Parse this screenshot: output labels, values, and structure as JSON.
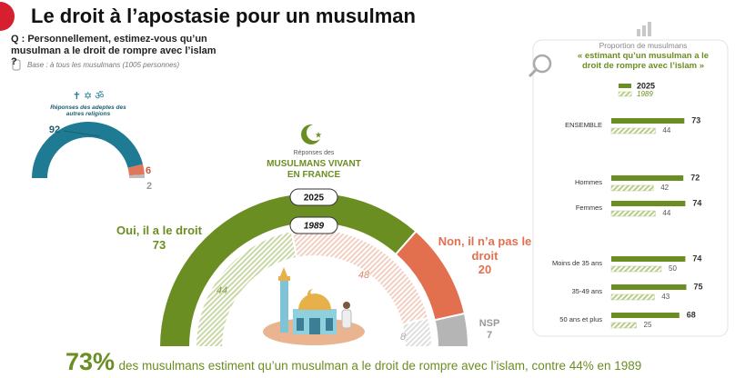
{
  "header": {
    "title": "Le droit à l’apostasie pour un musulman",
    "question": "Q : Personnellement, estimez-vous qu’un musulman a le droit de rompre avec l’islam ?",
    "base": "Base : à tous les musulmans (1005 personnes)"
  },
  "footer": {
    "highlight": "73%",
    "text": "des musulmans estiment qu’un musulman a le droit de rompre avec l’islam, contre 44% en 1989"
  },
  "chart_data": [
    {
      "type": "half-donut",
      "title": "Réponses des adeptes des autres religions",
      "values": [
        92,
        6,
        2
      ],
      "colors": [
        "#1f7b94",
        "#e0765a",
        "#bdbdbd"
      ]
    },
    {
      "type": "half-donut",
      "title": "Réponses des",
      "subtitle": "MUSULMANS VIVANT EN FRANCE",
      "categories": [
        "Oui, il a le droit",
        "Non, il n’a pas le droit",
        "NSP"
      ],
      "series": [
        {
          "name": "2025",
          "values": [
            73,
            20,
            7
          ],
          "colors": [
            "#6b8e23",
            "#e2704f",
            "#b5b5b5"
          ],
          "hatched": false
        },
        {
          "name": "1989",
          "values": [
            44,
            48,
            8
          ],
          "colors": [
            "#c9d8a6",
            "#f2cfc2",
            "#dedede"
          ],
          "hatched": true
        }
      ]
    },
    {
      "type": "hbar",
      "title": "Proportion de musulmans",
      "subtitle": "« estimant qu’un musulman a le droit de rompre avec l’islam »",
      "categories": [
        "ENSEMBLE",
        "Hommes",
        "Femmes",
        "Moins de 35 ans",
        "35-49 ans",
        "50 ans et plus"
      ],
      "series": [
        {
          "name": "2025",
          "color": "#6b8e23",
          "hatched": false,
          "values": [
            73,
            72,
            74,
            74,
            75,
            68
          ]
        },
        {
          "name": "1989",
          "color": "#b9cc8a",
          "hatched": true,
          "values": [
            44,
            42,
            44,
            50,
            43,
            25
          ]
        }
      ],
      "xlim": [
        0,
        100
      ]
    }
  ]
}
